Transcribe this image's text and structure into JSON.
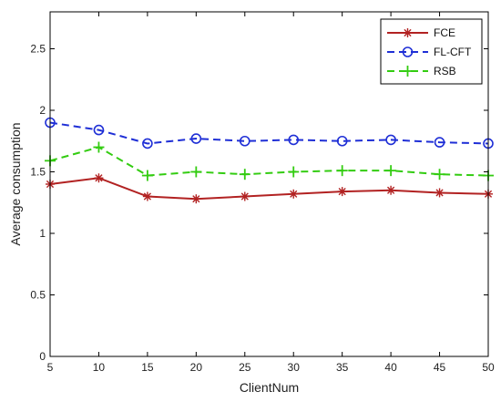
{
  "chart_data": {
    "type": "line",
    "xlabel": "ClientNum",
    "ylabel": "Average consumption",
    "x": [
      5,
      10,
      15,
      20,
      25,
      30,
      35,
      40,
      45,
      50
    ],
    "xlim": [
      5,
      50
    ],
    "ylim": [
      0,
      2.8
    ],
    "xticks": [
      "5",
      "10",
      "15",
      "20",
      "25",
      "30",
      "35",
      "40",
      "45",
      "50"
    ],
    "xtick_values": [
      5,
      10,
      15,
      20,
      25,
      30,
      35,
      40,
      45,
      50
    ],
    "yticks": [
      "0",
      "0.5",
      "1",
      "1.5",
      "2",
      "2.5"
    ],
    "ytick_values": [
      0,
      0.5,
      1,
      1.5,
      2,
      2.5
    ],
    "grid": false,
    "legend_position": "top-right",
    "series": [
      {
        "name": "FCE",
        "color": "#b22222",
        "marker": "asterisk",
        "linestyle": "solid",
        "values": [
          1.4,
          1.45,
          1.3,
          1.28,
          1.3,
          1.32,
          1.34,
          1.35,
          1.33,
          1.32
        ]
      },
      {
        "name": "FL-CFT",
        "color": "#1f2fd6",
        "marker": "circle",
        "linestyle": "dashed",
        "values": [
          1.9,
          1.84,
          1.73,
          1.77,
          1.75,
          1.76,
          1.75,
          1.76,
          1.74,
          1.73
        ]
      },
      {
        "name": "RSB",
        "color": "#33cc11",
        "marker": "plus",
        "linestyle": "dashed",
        "values": [
          1.59,
          1.7,
          1.47,
          1.5,
          1.48,
          1.5,
          1.51,
          1.51,
          1.48,
          1.47
        ]
      }
    ]
  }
}
